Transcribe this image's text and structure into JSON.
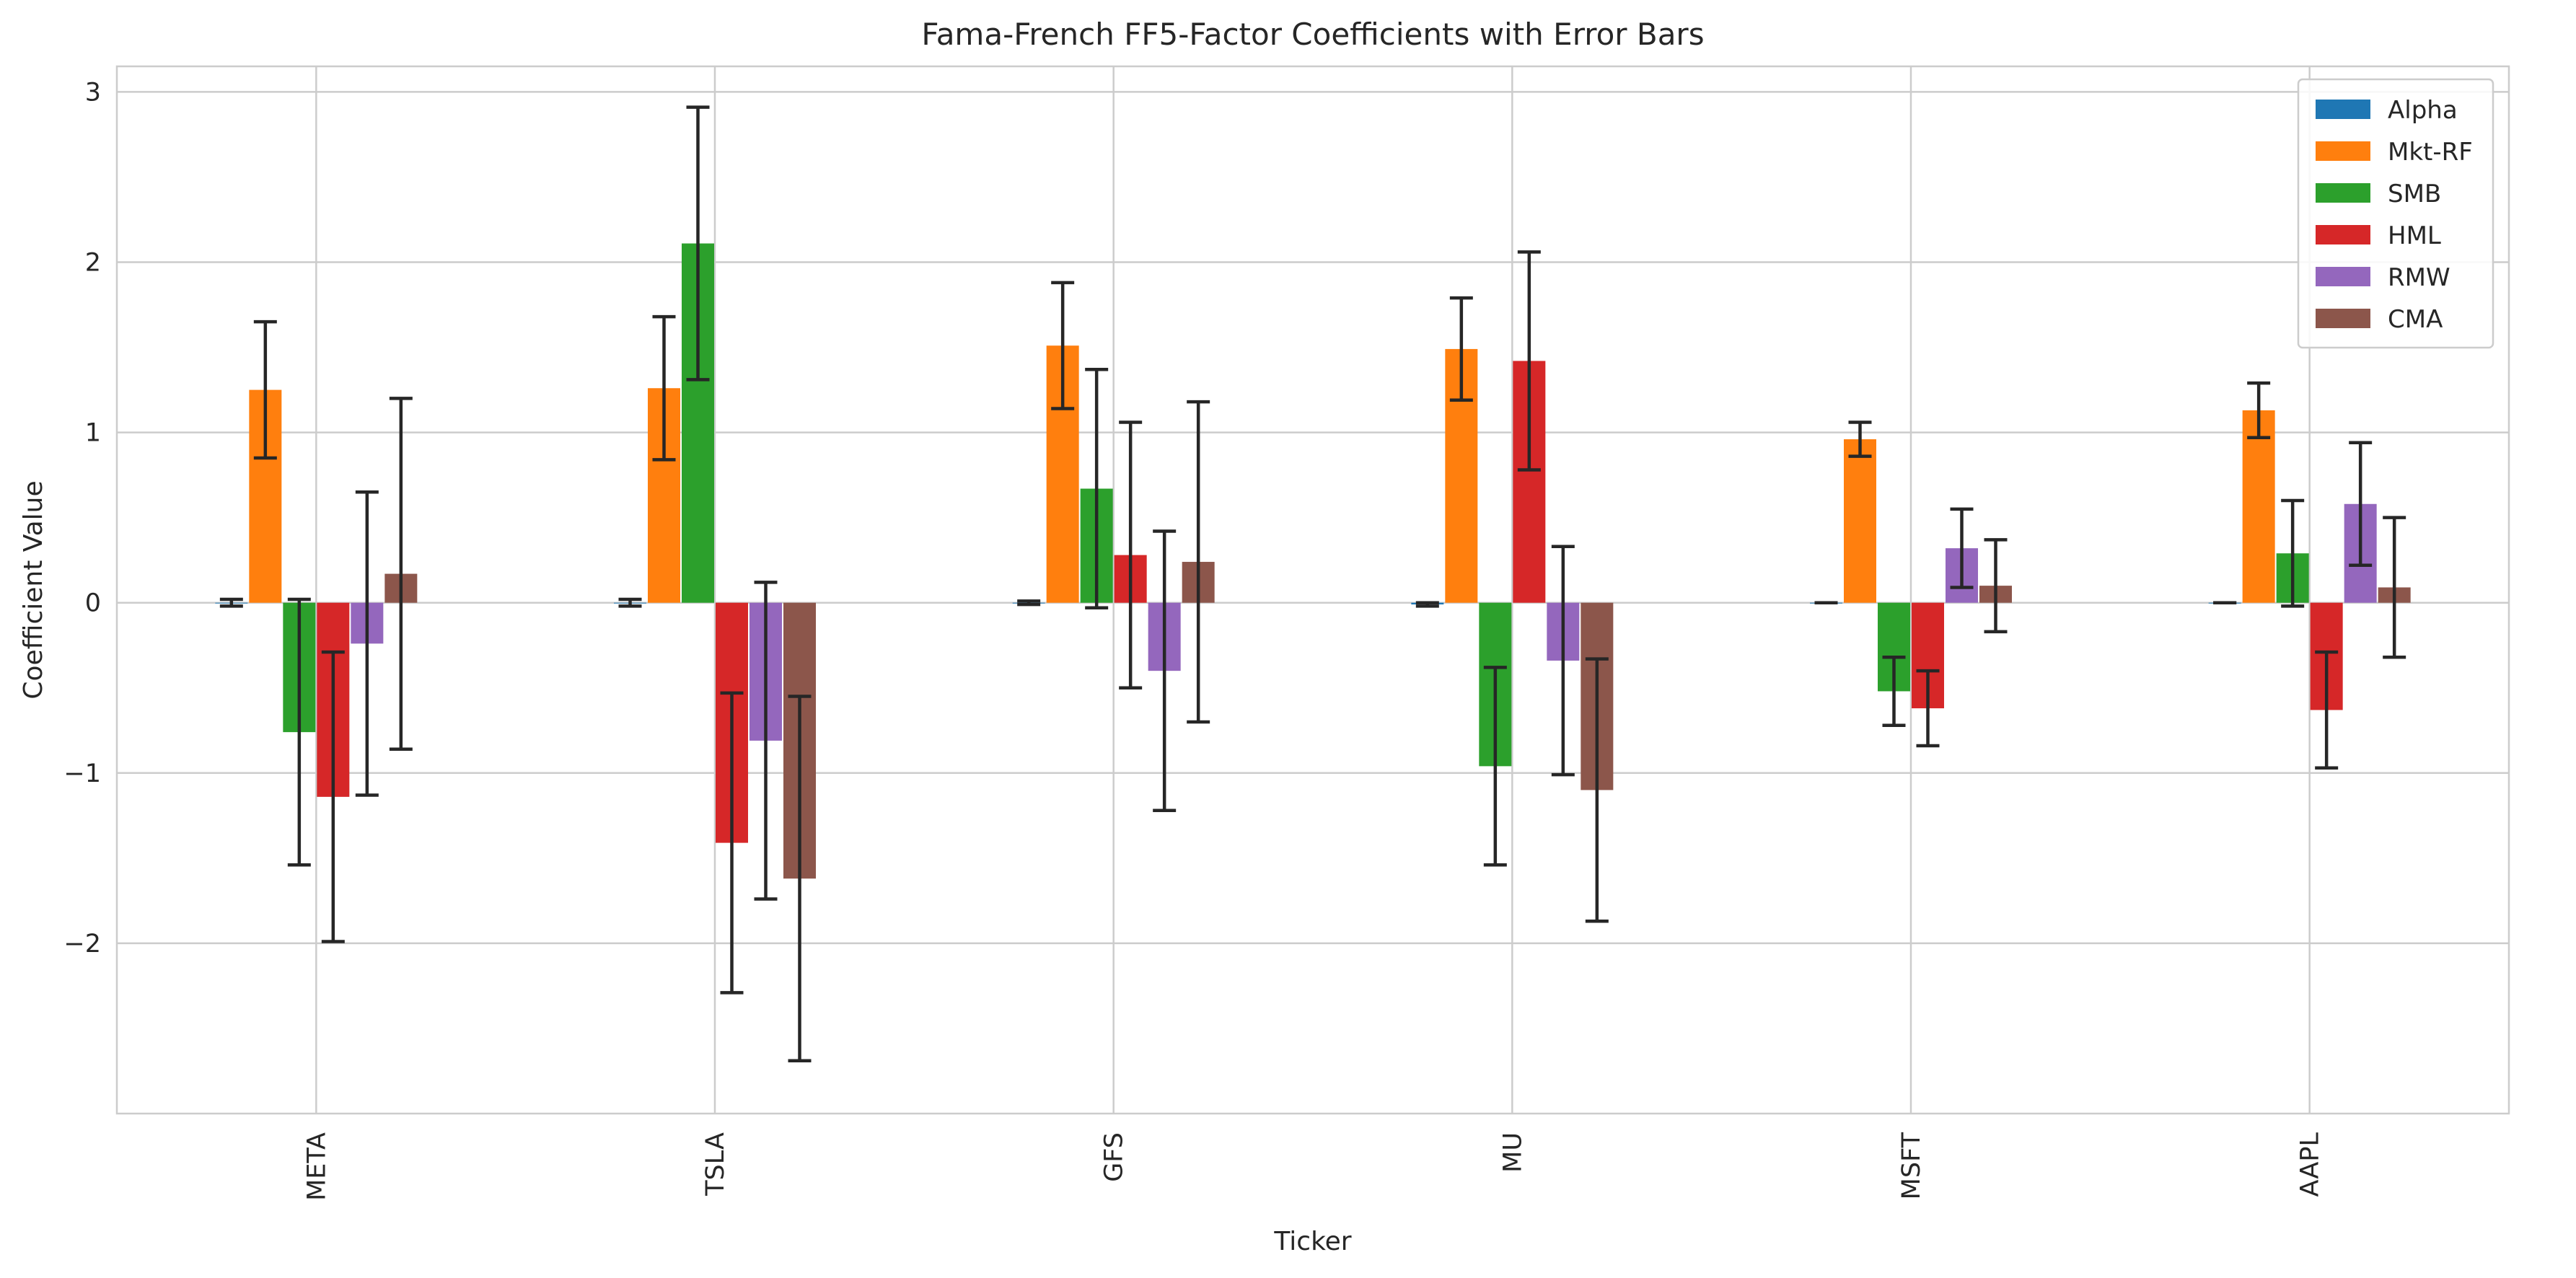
{
  "chart_data": {
    "type": "bar",
    "title": "Fama-French FF5-Factor Coefficients with Error Bars",
    "xlabel": "Ticker",
    "ylabel": "Coefficient Value",
    "ylim": [
      -3.0,
      3.15
    ],
    "yticks": [
      -2,
      -1,
      0,
      1,
      2,
      3
    ],
    "ytick_labels": [
      "−2",
      "−1",
      "0",
      "1",
      "2",
      "3"
    ],
    "grid": true,
    "legend_position": "top-right",
    "categories": [
      "META",
      "TSLA",
      "GFS",
      "MU",
      "MSFT",
      "AAPL"
    ],
    "series": [
      {
        "name": "Alpha",
        "color": "#1f77b4",
        "values": [
          0.0,
          0.0,
          0.0,
          -0.01,
          0.0,
          0.0
        ],
        "errors": [
          0.02,
          0.02,
          0.01,
          0.01,
          0.0,
          0.0
        ]
      },
      {
        "name": "Mkt-RF",
        "color": "#ff7f0e",
        "values": [
          1.25,
          1.26,
          1.51,
          1.49,
          0.96,
          1.13
        ],
        "errors": [
          0.4,
          0.42,
          0.37,
          0.3,
          0.1,
          0.16
        ]
      },
      {
        "name": "SMB",
        "color": "#2ca02c",
        "values": [
          -0.76,
          2.11,
          0.67,
          -0.96,
          -0.52,
          0.29
        ],
        "errors": [
          0.78,
          0.8,
          0.7,
          0.58,
          0.2,
          0.31
        ]
      },
      {
        "name": "HML",
        "color": "#d62728",
        "values": [
          -1.14,
          -1.41,
          0.28,
          1.42,
          -0.62,
          -0.63
        ],
        "errors": [
          0.85,
          0.88,
          0.78,
          0.64,
          0.22,
          0.34
        ]
      },
      {
        "name": "RMW",
        "color": "#9467bd",
        "values": [
          -0.24,
          -0.81,
          -0.4,
          -0.34,
          0.32,
          0.58
        ],
        "errors": [
          0.89,
          0.93,
          0.82,
          0.67,
          0.23,
          0.36
        ]
      },
      {
        "name": "CMA",
        "color": "#8c564b",
        "values": [
          0.17,
          -1.62,
          0.24,
          -1.1,
          0.1,
          0.09
        ],
        "errors": [
          1.03,
          1.07,
          0.94,
          0.77,
          0.27,
          0.41
        ]
      }
    ]
  }
}
